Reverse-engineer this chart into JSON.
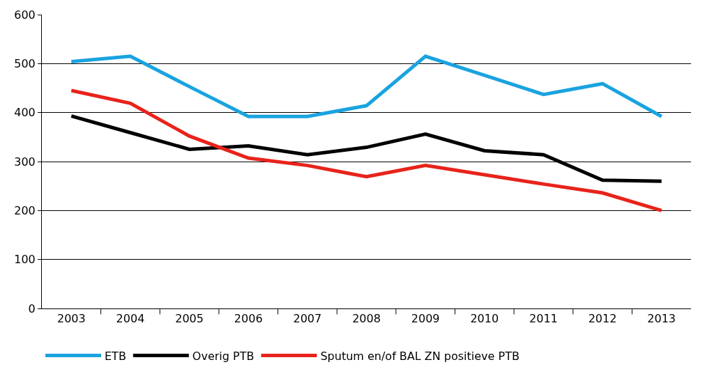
{
  "chart_data": {
    "type": "line",
    "categories": [
      "2003",
      "2004",
      "2005",
      "2006",
      "2007",
      "2008",
      "2009",
      "2010",
      "2011",
      "2012",
      "2013"
    ],
    "series": [
      {
        "name": "ETB",
        "color": "#1aa3e0",
        "values": [
          504,
          515,
          453,
          392,
          392,
          414,
          515,
          476,
          437,
          459,
          392
        ]
      },
      {
        "name": "Overig PTB",
        "color": "#000000",
        "values": [
          393,
          359,
          325,
          332,
          314,
          329,
          356,
          322,
          314,
          262,
          260
        ]
      },
      {
        "name": "Sputum en/of BAL ZN positieve PTB",
        "color": "#e8231b",
        "values": [
          445,
          419,
          352,
          307,
          292,
          269,
          292,
          273,
          254,
          236,
          200
        ]
      }
    ],
    "ylim": [
      0,
      600
    ],
    "yticks": [
      0,
      100,
      200,
      300,
      400,
      500,
      600
    ],
    "grid": "y",
    "legend": "bottom",
    "marker": "none",
    "line_style": "solid"
  }
}
